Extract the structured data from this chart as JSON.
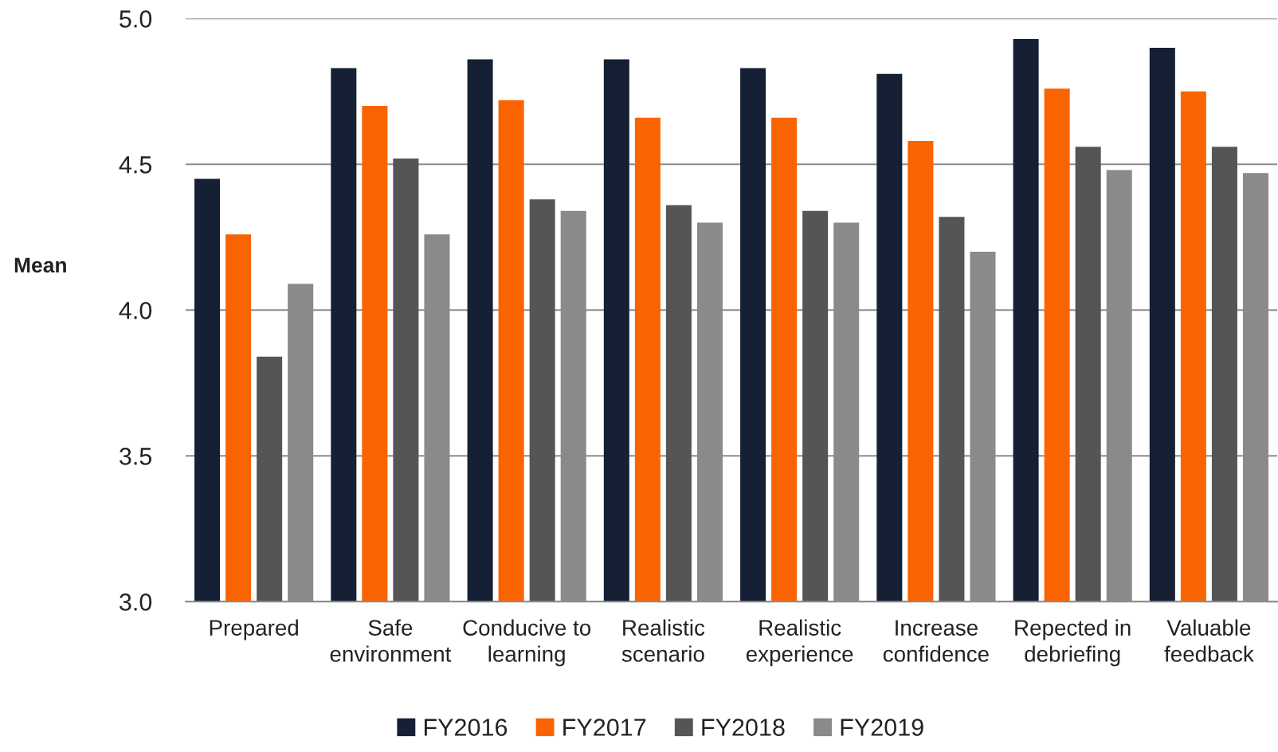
{
  "chart_data": {
    "type": "bar",
    "ylabel": "Mean",
    "categories": [
      "Prepared",
      "Safe\nenvironment",
      "Conducive to\nlearning",
      "Realistic\nscenario",
      "Realistic\nexperience",
      "Increase\nconfidence",
      "Repected in\ndebriefing",
      "Valuable\nfeedback"
    ],
    "series": [
      {
        "name": "FY2016",
        "color": "#152035",
        "values": [
          4.45,
          4.83,
          4.86,
          4.86,
          4.83,
          4.81,
          4.93,
          4.9
        ]
      },
      {
        "name": "FY2017",
        "color": "#fa6400",
        "values": [
          4.26,
          4.7,
          4.72,
          4.66,
          4.66,
          4.58,
          4.76,
          4.75
        ]
      },
      {
        "name": "FY2018",
        "color": "#555555",
        "values": [
          3.84,
          4.52,
          4.38,
          4.36,
          4.34,
          4.32,
          4.56,
          4.56
        ]
      },
      {
        "name": "FY2019",
        "color": "#8a8a8a",
        "values": [
          4.09,
          4.26,
          4.34,
          4.3,
          4.3,
          4.2,
          4.48,
          4.47
        ]
      }
    ],
    "ylim": [
      3,
      5
    ],
    "yticks": [
      {
        "value": 3,
        "label": "3.0"
      },
      {
        "value": 3.5,
        "label": "3.5"
      },
      {
        "value": 4,
        "label": "4.0"
      },
      {
        "value": 4.5,
        "label": "4.5"
      },
      {
        "value": 5,
        "label": "5.0"
      }
    ],
    "grid": "y",
    "legend": "bottom"
  }
}
